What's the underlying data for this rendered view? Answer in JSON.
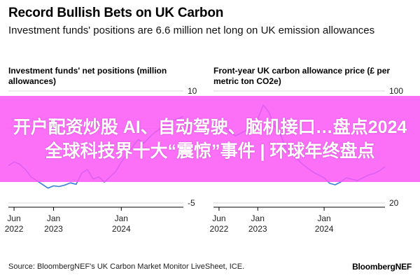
{
  "title": "Record Bullish Bets on UK Carbon",
  "subtitle": "Investment funds' positions are 6.6 million net long on UK emission allowances",
  "source": "Source: BloombergNEF's UK Carbon Market Monitor LiveSheet, ICE.",
  "brand": "BloombergNEF",
  "banner_text": "开户配资炒股 AI、自动驾驶、脑机接口…盘点2024全球科技界十大“震惊”事件 | 环球年终盘点",
  "colors": {
    "series": "#3b7fd9",
    "axis": "#000000",
    "grid": "#d9d9d9",
    "banner": "#fa58f6"
  },
  "chart_data": [
    {
      "type": "line",
      "title": "Investment funds' net positions (million allowances)",
      "x_tick_labels": [
        {
          "month": "Jun",
          "year": "2022",
          "date": "2022-06"
        },
        {
          "month": "Jan",
          "year": "2023",
          "date": "2023-01"
        },
        {
          "month": "Jan",
          "year": "2024",
          "date": "2024-01"
        }
      ],
      "y_ticks": [
        10,
        5,
        -5
      ],
      "ylim": [
        -5,
        10
      ],
      "xlim": [
        "2022-05",
        "2024-12"
      ],
      "series": [
        {
          "x": [
            "2022-05",
            "2022-06",
            "2022-07",
            "2022-08",
            "2022-09",
            "2022-10",
            "2022-11",
            "2022-12",
            "2023-01",
            "2023-02",
            "2023-03",
            "2023-04",
            "2023-05",
            "2023-06",
            "2023-07",
            "2023-08",
            "2023-09",
            "2023-10",
            "2023-11",
            "2023-12",
            "2024-01",
            "2024-02",
            "2024-03",
            "2024-04",
            "2024-05",
            "2024-06",
            "2024-07",
            "2024-08",
            "2024-09",
            "2024-10",
            "2024-11",
            "2024-12"
          ],
          "y": [
            0.0,
            0.5,
            0.2,
            -0.5,
            -1.5,
            -2.0,
            -2.5,
            -3.0,
            -2.7,
            -2.8,
            -2.6,
            -2.3,
            -2.5,
            -1.0,
            -0.5,
            -1.8,
            -1.5,
            -2.2,
            -1.5,
            -0.8,
            0.5,
            1.5,
            2.5,
            3.5,
            3.0,
            3.8,
            4.5,
            5.0,
            5.5,
            6.0,
            6.3,
            6.6
          ]
        }
      ]
    },
    {
      "type": "line",
      "title": "Front-year UK carbon allowance price (£ per metric ton CO2e)",
      "x_tick_labels": [
        {
          "month": "Jun",
          "year": "2022",
          "date": "2022-06"
        },
        {
          "month": "Jan",
          "year": "2023",
          "date": "2023-01"
        },
        {
          "month": "Jan",
          "year": "2024",
          "date": "2024-01"
        }
      ],
      "y_ticks": [
        100,
        20
      ],
      "ylim": [
        20,
        100
      ],
      "xlim": [
        "2022-05",
        "2024-12"
      ],
      "series": [
        {
          "x": [
            "2022-05",
            "2022-06",
            "2022-07",
            "2022-08",
            "2022-09",
            "2022-10",
            "2022-11",
            "2022-12",
            "2023-01",
            "2023-02",
            "2023-03",
            "2023-04",
            "2023-05",
            "2023-06",
            "2023-07",
            "2023-08",
            "2023-09",
            "2023-10",
            "2023-11",
            "2023-12",
            "2024-01",
            "2024-02",
            "2024-03",
            "2024-04",
            "2024-05",
            "2024-06",
            "2024-07",
            "2024-08",
            "2024-09",
            "2024-10",
            "2024-11",
            "2024-12"
          ],
          "y": [
            80,
            78,
            75,
            70,
            68,
            70,
            72,
            75,
            80,
            90,
            85,
            75,
            70,
            60,
            55,
            52,
            48,
            45,
            42,
            40,
            38,
            34,
            33,
            35,
            38,
            37,
            36,
            38,
            40,
            41,
            43,
            46
          ]
        }
      ]
    }
  ]
}
